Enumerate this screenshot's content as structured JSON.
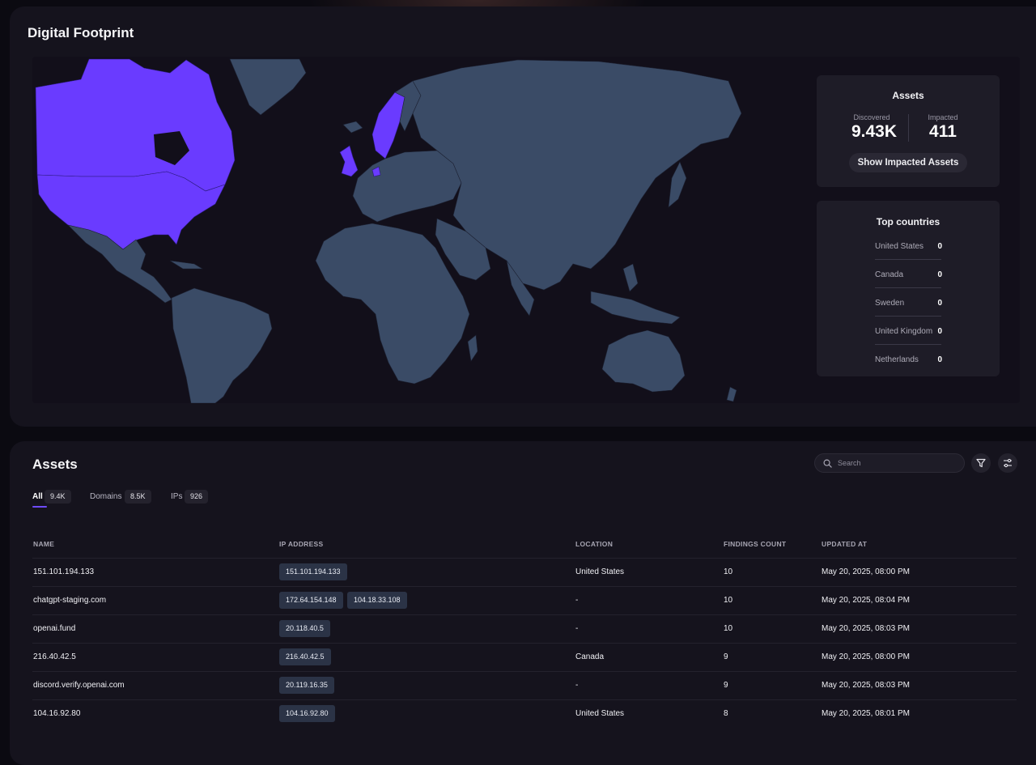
{
  "footprint": {
    "title": "Digital Footprint",
    "map": {
      "land_color": "#3a4b66",
      "highlight_color": "#6a3bff",
      "highlighted_regions": [
        "United States",
        "Canada",
        "Sweden",
        "United Kingdom",
        "Netherlands"
      ]
    },
    "assets_card": {
      "title": "Assets",
      "discovered_label": "Discovered",
      "discovered_value": "9.43K",
      "impacted_label": "Impacted",
      "impacted_value": "411",
      "button_label": "Show Impacted Assets"
    },
    "top_countries": {
      "title": "Top countries",
      "items": [
        {
          "name": "United States",
          "count": "0"
        },
        {
          "name": "Canada",
          "count": "0"
        },
        {
          "name": "Sweden",
          "count": "0"
        },
        {
          "name": "United Kingdom",
          "count": "0"
        },
        {
          "name": "Netherlands",
          "count": "0"
        }
      ]
    }
  },
  "assets": {
    "title": "Assets",
    "search_placeholder": "Search",
    "tabs": [
      {
        "label": "All",
        "count": "9.4K"
      },
      {
        "label": "Domains",
        "count": "8.5K"
      },
      {
        "label": "IPs",
        "count": "926"
      }
    ],
    "columns": [
      "NAME",
      "IP ADDRESS",
      "LOCATION",
      "FINDINGS COUNT",
      "UPDATED AT"
    ],
    "rows": [
      {
        "name": "151.101.194.133",
        "ips": [
          "151.101.194.133"
        ],
        "location": "United States",
        "findings": "10",
        "updated": "May 20, 2025, 08:00 PM"
      },
      {
        "name": "chatgpt-staging.com",
        "ips": [
          "172.64.154.148",
          "104.18.33.108"
        ],
        "location": "-",
        "findings": "10",
        "updated": "May 20, 2025, 08:04 PM"
      },
      {
        "name": "openai.fund",
        "ips": [
          "20.118.40.5"
        ],
        "location": "-",
        "findings": "10",
        "updated": "May 20, 2025, 08:03 PM"
      },
      {
        "name": "216.40.42.5",
        "ips": [
          "216.40.42.5"
        ],
        "location": "Canada",
        "findings": "9",
        "updated": "May 20, 2025, 08:00 PM"
      },
      {
        "name": "discord.verify.openai.com",
        "ips": [
          "20.119.16.35"
        ],
        "location": "-",
        "findings": "9",
        "updated": "May 20, 2025, 08:03 PM"
      },
      {
        "name": "104.16.92.80",
        "ips": [
          "104.16.92.80"
        ],
        "location": "United States",
        "findings": "8",
        "updated": "May 20, 2025, 08:01 PM"
      }
    ]
  }
}
